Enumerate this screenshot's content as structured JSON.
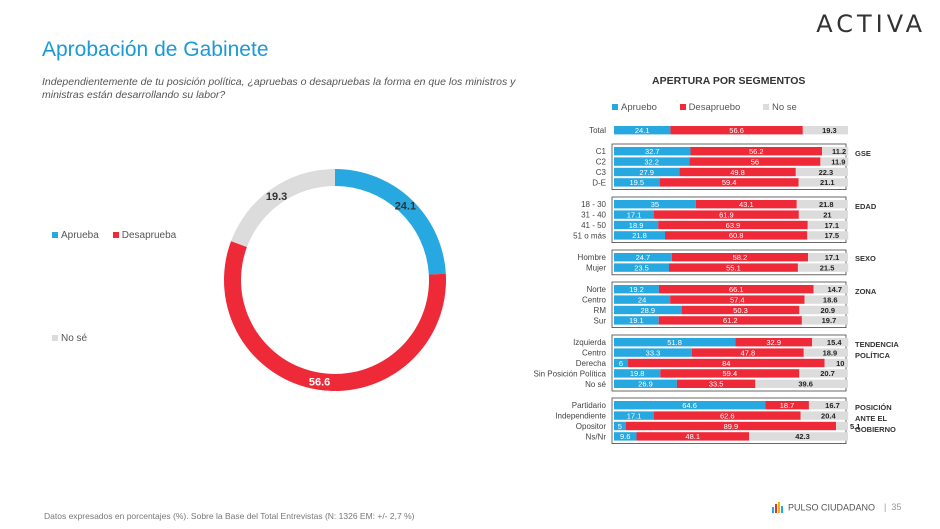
{
  "brand": "ACTIVA",
  "title": "Aprobación de Gabinete",
  "question": "Independientemente de tu posición política, ¿apruebas o desapruebas la forma en que los ministros y ministras están desarrollando su labor?",
  "colors": {
    "approve": "#27a8e0",
    "disapprove": "#ee2938",
    "nose": "#dcdcdc",
    "title": "#1a9ad6"
  },
  "donut_legend": {
    "approve": "Aprueba",
    "disapprove": "Desaprueba",
    "nose": "No sé"
  },
  "segments_title": "APERTURA POR SEGMENTOS",
  "segments_legend": {
    "approve": "Apruebo",
    "disapprove": "Desapruebo",
    "nose": "No se"
  },
  "footer": "Datos expresados en porcentajes (%). Sobre la Base del Total Entrevistas (N: 1326  EM: +/- 2,7 %)",
  "pulso": "PULSO CIUDADANO",
  "page_number": "35",
  "chart_data": [
    {
      "type": "pie",
      "categories": [
        "Aprueba",
        "Desaprueba",
        "No sé"
      ],
      "values": [
        24.1,
        56.6,
        19.3
      ]
    },
    {
      "type": "bar",
      "stacked": true,
      "orientation": "horizontal",
      "series_names": [
        "Apruebo",
        "Desapruebo",
        "No se"
      ],
      "groups": [
        {
          "label": "",
          "rows": [
            {
              "label": "Total",
              "values": [
                24.1,
                56.6,
                19.3
              ]
            }
          ]
        },
        {
          "label": "GSE",
          "rows": [
            {
              "label": "C1",
              "values": [
                32.7,
                56.2,
                11.2
              ]
            },
            {
              "label": "C2",
              "values": [
                32.2,
                56,
                11.9
              ]
            },
            {
              "label": "C3",
              "values": [
                27.9,
                49.8,
                22.3
              ]
            },
            {
              "label": "D-E",
              "values": [
                19.5,
                59.4,
                21.1
              ]
            }
          ]
        },
        {
          "label": "EDAD",
          "rows": [
            {
              "label": "18 - 30",
              "values": [
                35,
                43.1,
                21.8
              ]
            },
            {
              "label": "31 - 40",
              "values": [
                17.1,
                61.9,
                21
              ]
            },
            {
              "label": "41 - 50",
              "values": [
                18.9,
                63.9,
                17.1
              ]
            },
            {
              "label": "51 o más",
              "values": [
                21.8,
                60.8,
                17.5
              ]
            }
          ]
        },
        {
          "label": "SEXO",
          "rows": [
            {
              "label": "Hombre",
              "values": [
                24.7,
                58.2,
                17.1
              ]
            },
            {
              "label": "Mujer",
              "values": [
                23.5,
                55.1,
                21.5
              ]
            }
          ]
        },
        {
          "label": "ZONA",
          "rows": [
            {
              "label": "Norte",
              "values": [
                19.2,
                66.1,
                14.7
              ]
            },
            {
              "label": "Centro",
              "values": [
                24,
                57.4,
                18.6
              ]
            },
            {
              "label": "RM",
              "values": [
                28.9,
                50.3,
                20.9
              ]
            },
            {
              "label": "Sur",
              "values": [
                19.1,
                61.2,
                19.7
              ]
            }
          ]
        },
        {
          "label": "TENDENCIA POLÍTICA",
          "rows": [
            {
              "label": "Izquierda",
              "values": [
                51.8,
                32.9,
                15.4
              ]
            },
            {
              "label": "Centro",
              "values": [
                33.3,
                47.8,
                18.9
              ]
            },
            {
              "label": "Derecha",
              "values": [
                6,
                84,
                10
              ]
            },
            {
              "label": "Sin Posición Política",
              "values": [
                19.8,
                59.4,
                20.7
              ]
            },
            {
              "label": "No sé",
              "values": [
                26.9,
                33.5,
                39.6
              ]
            }
          ]
        },
        {
          "label": "POSICIÓN ANTE EL GOBIERNO",
          "rows": [
            {
              "label": "Partidario",
              "values": [
                64.6,
                18.7,
                16.7
              ]
            },
            {
              "label": "Independiente",
              "values": [
                17.1,
                62.6,
                20.4
              ]
            },
            {
              "label": "Opositor",
              "values": [
                5,
                89.9,
                5.1
              ]
            },
            {
              "label": "Ns/Nr",
              "values": [
                9.6,
                48.1,
                42.3
              ]
            }
          ]
        }
      ]
    }
  ]
}
